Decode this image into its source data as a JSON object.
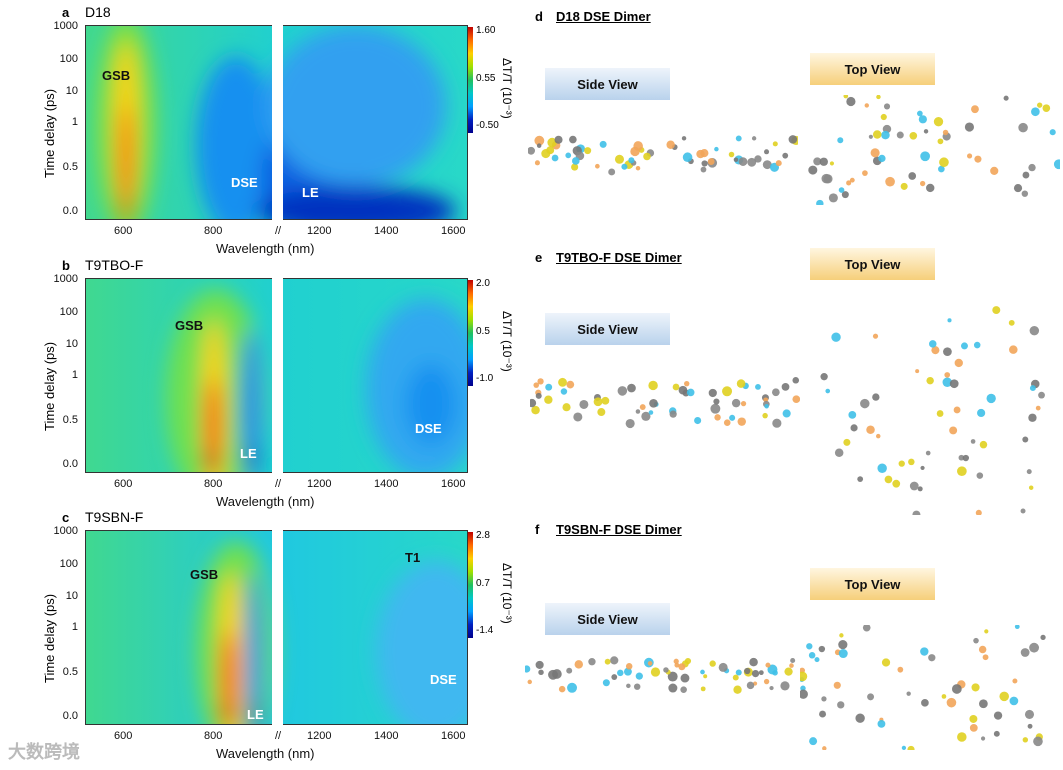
{
  "chart_data": [
    {
      "type": "heatmap",
      "panel": "a",
      "title": "D18",
      "xlabel": "Wavelength (nm)",
      "ylabel": "Time delay (ps)",
      "xticks": [
        "600",
        "800",
        "1200",
        "1400",
        "1600"
      ],
      "yticks": [
        "1000",
        "100",
        "10",
        "1",
        "0.5",
        "0.0"
      ],
      "colorbar": {
        "label": "ΔT/T (10⁻³)",
        "ticks": [
          "1.60",
          "0.55",
          "-0.50"
        ],
        "range": [
          -0.5,
          1.6
        ]
      },
      "annotations": [
        "GSB",
        "DSE",
        "LE"
      ],
      "features": {
        "gsb_nm": 600,
        "dse_nm": 950,
        "le_nm": 1200
      }
    },
    {
      "type": "heatmap",
      "panel": "b",
      "title": "T9TBO-F",
      "xlabel": "Wavelength (nm)",
      "ylabel": "Time delay (ps)",
      "xticks": [
        "600",
        "800",
        "1200",
        "1400",
        "1600"
      ],
      "yticks": [
        "1000",
        "100",
        "10",
        "1",
        "0.5",
        "0.0"
      ],
      "colorbar": {
        "label": "ΔT/T (10⁻³)",
        "ticks": [
          "2.0",
          "0.5",
          "-1.0"
        ],
        "range": [
          -1.0,
          2.0
        ]
      },
      "annotations": [
        "GSB",
        "LE",
        "DSE"
      ],
      "features": {
        "gsb_nm": 820,
        "le_nm": 900,
        "dse_nm": 1530
      }
    },
    {
      "type": "heatmap",
      "panel": "c",
      "title": "T9SBN-F",
      "xlabel": "Wavelength (nm)",
      "ylabel": "Time delay (ps)",
      "xticks": [
        "600",
        "800",
        "1200",
        "1400",
        "1600"
      ],
      "yticks": [
        "1000",
        "100",
        "10",
        "1",
        "0.5",
        "0.0"
      ],
      "colorbar": {
        "label": "ΔT/T (10⁻³)",
        "ticks": [
          "2.8",
          "0.7",
          "-1.4"
        ],
        "range": [
          -1.4,
          2.8
        ]
      },
      "annotations": [
        "GSB",
        "LE",
        "T1",
        "DSE"
      ],
      "features": {
        "gsb_nm": 860,
        "le_nm": 920,
        "dse_nm": 1550
      }
    }
  ],
  "right": [
    {
      "label": "d",
      "title": "D18 DSE Dimer",
      "side": "Side View",
      "top": "Top View"
    },
    {
      "label": "e",
      "title": "T9TBO-F DSE Dimer",
      "side": "Side View",
      "top": "Top View"
    },
    {
      "label": "f",
      "title": "T9SBN-F DSE Dimer",
      "side": "Side View",
      "top": "Top View"
    }
  ],
  "labels": [
    "a",
    "b",
    "c"
  ],
  "watermark": "大数跨境"
}
